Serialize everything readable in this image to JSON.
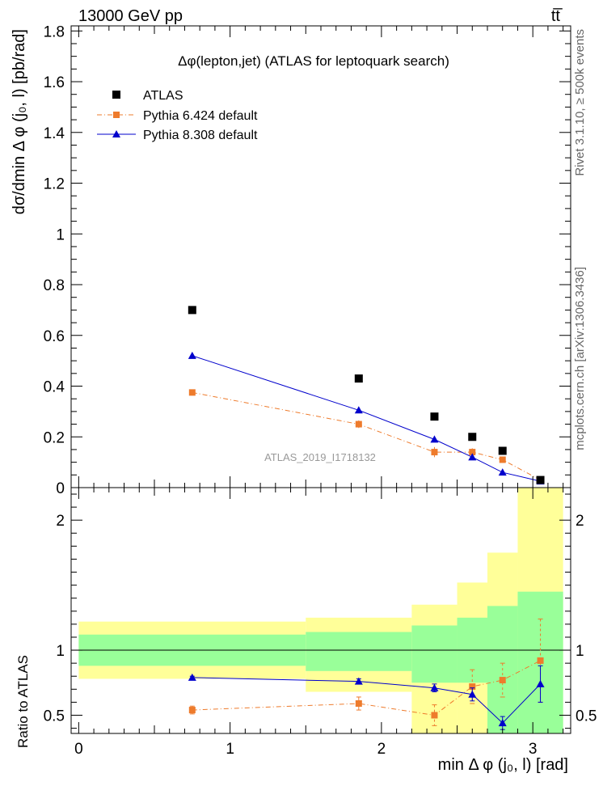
{
  "header": {
    "left": "13000 GeV pp",
    "right": "tt̅"
  },
  "side_labels": {
    "rivet": "Rivet 3.1.10, ≥ 500k events",
    "mcplots": "mcplots.cern.ch [arXiv:1306.3436]"
  },
  "watermark": "ATLAS_2019_I1718132",
  "top_title": "Δφ(lepton,jet) (ATLAS for leptoquark search)",
  "top_ylabel": "dσ/dmin Δ φ (j₀, l) [pb/rad]",
  "bottom_ylabel": "Ratio to ATLAS",
  "xlabel": "min Δ φ (j₀, l) [rad]",
  "legend": {
    "atlas": "ATLAS",
    "py6": "Pythia 6.424 default",
    "py8": "Pythia 8.308 default"
  },
  "colors": {
    "atlas": "#000000",
    "py6": "#ee7b2c",
    "py8": "#0000cc",
    "band_inner": "#99ff99",
    "band_outer": "#ffff99"
  },
  "chart_data": [
    {
      "type": "scatter",
      "panel": "main",
      "xlim": [
        -0.05,
        3.25
      ],
      "ylim": [
        0,
        1.82
      ],
      "yticks": [
        "0",
        "0.2",
        "0.4",
        "0.6",
        "0.8",
        "1",
        "1.2",
        "1.4",
        "1.6",
        "1.8"
      ],
      "bins": [
        [
          0,
          1.5
        ],
        [
          1.5,
          2.2
        ],
        [
          2.2,
          2.5
        ],
        [
          2.5,
          2.7
        ],
        [
          2.7,
          2.9
        ],
        [
          2.9,
          3.2
        ]
      ],
      "x": [
        0.75,
        1.85,
        2.35,
        2.6,
        2.8,
        3.05
      ],
      "series": [
        {
          "name": "ATLAS",
          "values": [
            0.7,
            0.43,
            0.28,
            0.2,
            0.145,
            0.03
          ]
        },
        {
          "name": "Pythia 6.424 default",
          "values": [
            0.375,
            0.25,
            0.14,
            0.14,
            0.11,
            0.03
          ],
          "errors": [
            0.012,
            0.015,
            0.02,
            0.015,
            0.012,
            0.005
          ]
        },
        {
          "name": "Pythia 8.308 default",
          "values": [
            0.52,
            0.305,
            0.19,
            0.12,
            0.06,
            0.025
          ],
          "errors": [
            0.005,
            0.005,
            0.01,
            0.008,
            0.005,
            0.003
          ]
        }
      ]
    },
    {
      "type": "scatter",
      "panel": "ratio",
      "xlim": [
        -0.05,
        3.25
      ],
      "ylim": [
        0.36,
        2.25
      ],
      "yticks": [
        "0.5",
        "1",
        "2"
      ],
      "xticks": [
        "0",
        "1",
        "2",
        "3"
      ],
      "bands": {
        "inner_lo": [
          0.88,
          0.84,
          0.75,
          0.75,
          0.32,
          0.32
        ],
        "inner_hi": [
          1.12,
          1.14,
          1.19,
          1.25,
          1.34,
          1.45
        ],
        "outer_lo": [
          0.78,
          0.68,
          0.33,
          0.33,
          0.32,
          0.32
        ],
        "outer_hi": [
          1.22,
          1.25,
          1.35,
          1.52,
          1.75,
          2.3
        ]
      },
      "series": [
        {
          "name": "Pythia 6.424 default",
          "values": [
            0.54,
            0.59,
            0.5,
            0.72,
            0.77,
            0.92
          ],
          "errors": [
            0.03,
            0.05,
            0.08,
            0.13,
            0.13,
            0.32
          ]
        },
        {
          "name": "Pythia 8.308 default",
          "values": [
            0.79,
            0.76,
            0.71,
            0.66,
            0.44,
            0.74
          ],
          "errors": [
            0.01,
            0.02,
            0.03,
            0.05,
            0.05,
            0.14
          ]
        }
      ]
    }
  ]
}
